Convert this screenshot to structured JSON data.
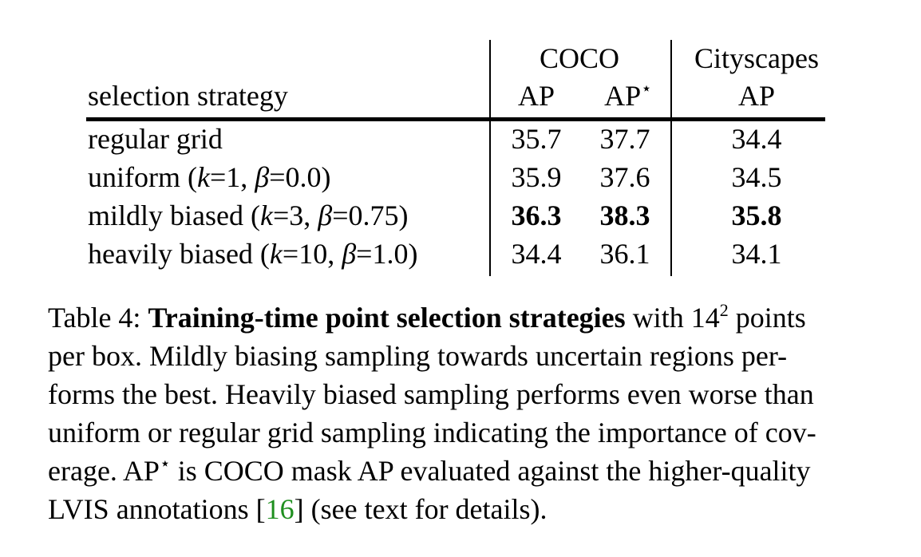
{
  "table": {
    "header": {
      "group_coco": "COCO",
      "group_cityscapes": "Cityscapes",
      "col_strategy": "selection strategy",
      "col_coco_ap": "AP",
      "col_coco_apstar_base": "AP",
      "col_coco_apstar_sup": "⋆",
      "col_cityscapes_ap": "AP"
    },
    "rows": [
      {
        "label_prefix": "regular grid",
        "k_symbol": "",
        "k_value": "",
        "beta_symbol": "",
        "beta_value": "",
        "label_suffix": "",
        "coco_ap": "35.7",
        "coco_apstar": "37.7",
        "cityscapes_ap": "34.4",
        "bold": false
      },
      {
        "label_prefix": "uniform (",
        "k_symbol": "k",
        "k_value": "=1, ",
        "beta_symbol": "β",
        "beta_value": "=0.0",
        "label_suffix": ")",
        "coco_ap": "35.9",
        "coco_apstar": "37.6",
        "cityscapes_ap": "34.5",
        "bold": false
      },
      {
        "label_prefix": "mildly biased (",
        "k_symbol": "k",
        "k_value": "=3, ",
        "beta_symbol": "β",
        "beta_value": "=0.75",
        "label_suffix": ")",
        "coco_ap": "36.3",
        "coco_apstar": "38.3",
        "cityscapes_ap": "35.8",
        "bold": true
      },
      {
        "label_prefix": "heavily biased (",
        "k_symbol": "k",
        "k_value": "=10, ",
        "beta_symbol": "β",
        "beta_value": "=1.0",
        "label_suffix": ")",
        "coco_ap": "34.4",
        "coco_apstar": "36.1",
        "cityscapes_ap": "34.1",
        "bold": false
      }
    ]
  },
  "caption": {
    "label": "Table 4:",
    "bold_title": "Training-time point selection strategies",
    "line1_rest_a": " with 14",
    "line1_sup": "2",
    "line1_rest_b": " points",
    "line2": "per box.  Mildly biasing sampling towards uncertain regions per-",
    "line3": "forms the best. Heavily biased sampling performs even worse than",
    "line4": "uniform or regular grid sampling indicating the importance of cov-",
    "line5_a": "erage. AP",
    "line5_sup": "⋆",
    "line5_b": " is COCO mask AP evaluated against the higher-quality",
    "line6_a": "LVIS annotations [",
    "line6_cite": "16",
    "line6_b": "] (see text for details)."
  }
}
